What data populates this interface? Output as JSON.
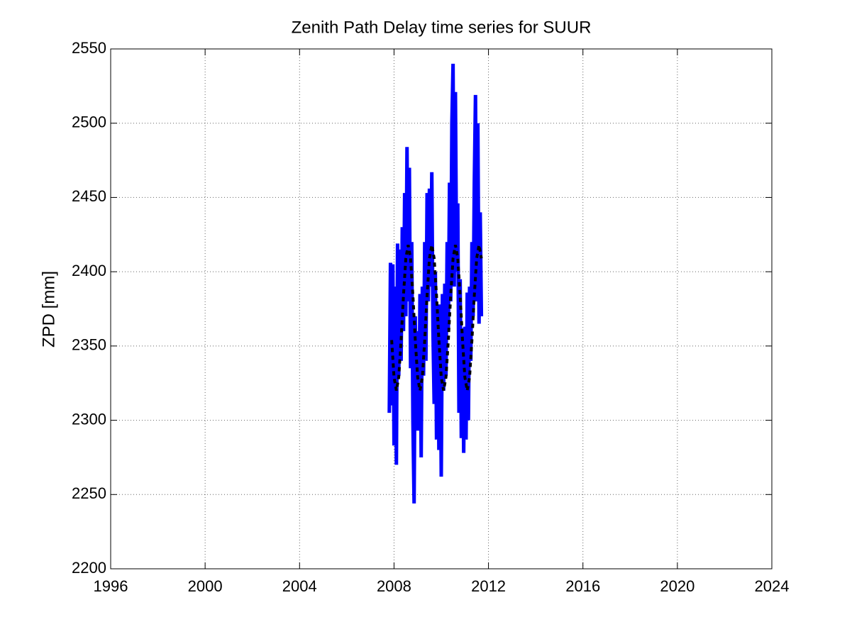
{
  "chart_data": {
    "type": "line",
    "title": "Zenith Path Delay time series for SUUR",
    "y_label": "ZPD [mm]",
    "xlim": [
      1996,
      2024
    ],
    "xticks": [
      1996,
      2000,
      2004,
      2008,
      2012,
      2016,
      2020,
      2024
    ],
    "ylim": [
      2200,
      2550
    ],
    "yticks": [
      2200,
      2250,
      2300,
      2350,
      2400,
      2450,
      2500,
      2550
    ],
    "grid": true,
    "series": [
      {
        "color": "#0000ff",
        "style": "solid",
        "x": [
          2007.8,
          2007.85,
          2007.9,
          2007.95,
          2008.0,
          2008.05,
          2008.1,
          2008.15,
          2008.2,
          2008.25,
          2008.3,
          2008.35,
          2008.4,
          2008.45,
          2008.5,
          2008.55,
          2008.6,
          2008.65,
          2008.7,
          2008.75,
          2008.8,
          2008.85,
          2008.9,
          2008.95,
          2009.0,
          2009.05,
          2009.1,
          2009.15,
          2009.2,
          2009.25,
          2009.3,
          2009.35,
          2009.4,
          2009.45,
          2009.5,
          2009.55,
          2009.6,
          2009.65,
          2009.7,
          2009.75,
          2009.8,
          2009.85,
          2009.9,
          2009.95,
          2010.0,
          2010.05,
          2010.1,
          2010.15,
          2010.2,
          2010.25,
          2010.3,
          2010.35,
          2010.4,
          2010.45,
          2010.5,
          2010.55,
          2010.6,
          2010.65,
          2010.7,
          2010.75,
          2010.8,
          2010.85,
          2010.9,
          2010.95,
          2011.0,
          2011.05,
          2011.1,
          2011.15,
          2011.2,
          2011.25,
          2011.3,
          2011.35,
          2011.4,
          2011.45,
          2011.5,
          2011.55,
          2011.6,
          2011.65,
          2011.7
        ],
        "values": [
          2305,
          2406,
          2310,
          2405,
          2283,
          2390,
          2270,
          2419,
          2330,
          2415,
          2340,
          2430,
          2360,
          2453,
          2370,
          2484,
          2380,
          2470,
          2335,
          2420,
          2300,
          2244,
          2370,
          2293,
          2360,
          2293,
          2385,
          2275,
          2390,
          2330,
          2420,
          2340,
          2453,
          2380,
          2456,
          2390,
          2467,
          2360,
          2311,
          2400,
          2287,
          2378,
          2280,
          2378,
          2262,
          2385,
          2320,
          2392,
          2330,
          2420,
          2360,
          2460,
          2380,
          2500,
          2540,
          2390,
          2521,
          2400,
          2446,
          2305,
          2395,
          2288,
          2362,
          2278,
          2363,
          2287,
          2386,
          2300,
          2390,
          2340,
          2420,
          2370,
          2460,
          2519,
          2380,
          2500,
          2365,
          2440,
          2370
        ]
      },
      {
        "color": "#000000",
        "style": "dashed",
        "x": [
          2007.9,
          2008.0,
          2008.1,
          2008.2,
          2008.3,
          2008.4,
          2008.5,
          2008.6,
          2008.7,
          2008.8,
          2008.9,
          2009.0,
          2009.1,
          2009.2,
          2009.3,
          2009.4,
          2009.5,
          2009.6,
          2009.7,
          2009.8,
          2009.9,
          2010.0,
          2010.1,
          2010.2,
          2010.3,
          2010.4,
          2010.5,
          2010.6,
          2010.7,
          2010.8,
          2010.9,
          2011.0,
          2011.1,
          2011.2,
          2011.3,
          2011.4,
          2011.5,
          2011.6,
          2011.7
        ],
        "values": [
          2354,
          2329,
          2320,
          2329,
          2354,
          2384,
          2409,
          2418,
          2409,
          2384,
          2354,
          2329,
          2320,
          2329,
          2354,
          2384,
          2409,
          2418,
          2409,
          2384,
          2354,
          2329,
          2320,
          2329,
          2354,
          2384,
          2409,
          2418,
          2409,
          2384,
          2354,
          2329,
          2320,
          2329,
          2354,
          2384,
          2409,
          2418,
          2409
        ]
      }
    ]
  }
}
